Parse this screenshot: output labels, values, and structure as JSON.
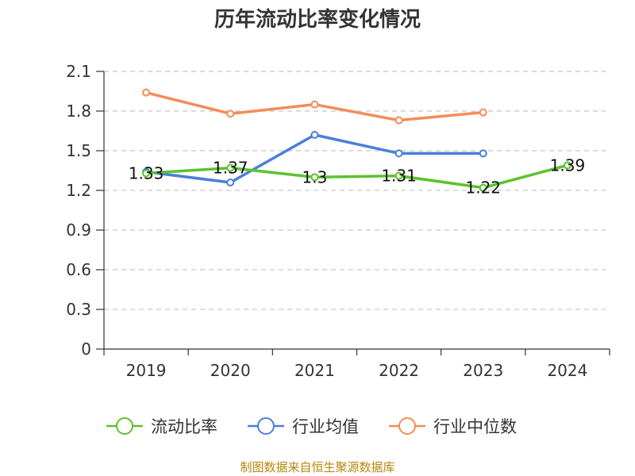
{
  "chart_title": "历年流动比率变化情况",
  "source_note": "制图数据来自恒生聚源数据库",
  "chart_data": {
    "type": "line",
    "title": "历年流动比率变化情况",
    "xlabel": "",
    "ylabel": "",
    "categories": [
      "2019",
      "2020",
      "2021",
      "2022",
      "2023",
      "2024"
    ],
    "ylim": [
      0,
      2.1
    ],
    "y_ticks": [
      "0",
      "0.3",
      "0.6",
      "0.9",
      "1.2",
      "1.5",
      "1.8",
      "2.1"
    ],
    "grid": "horizontal-dashed",
    "legend_position": "bottom",
    "series": [
      {
        "name": "流动比率",
        "color": "#5cc22e",
        "values": [
          1.33,
          1.37,
          1.3,
          1.31,
          1.22,
          1.39
        ],
        "data_labels": [
          "1.33",
          "1.37",
          "1.3",
          "1.31",
          "1.22",
          "1.39"
        ]
      },
      {
        "name": "行业均值",
        "color": "#4a7fdb",
        "values": [
          1.34,
          1.26,
          1.62,
          1.48,
          1.48,
          null
        ]
      },
      {
        "name": "行业中位数",
        "color": "#f58c5a",
        "values": [
          1.94,
          1.78,
          1.85,
          1.73,
          1.79,
          null
        ]
      }
    ]
  }
}
